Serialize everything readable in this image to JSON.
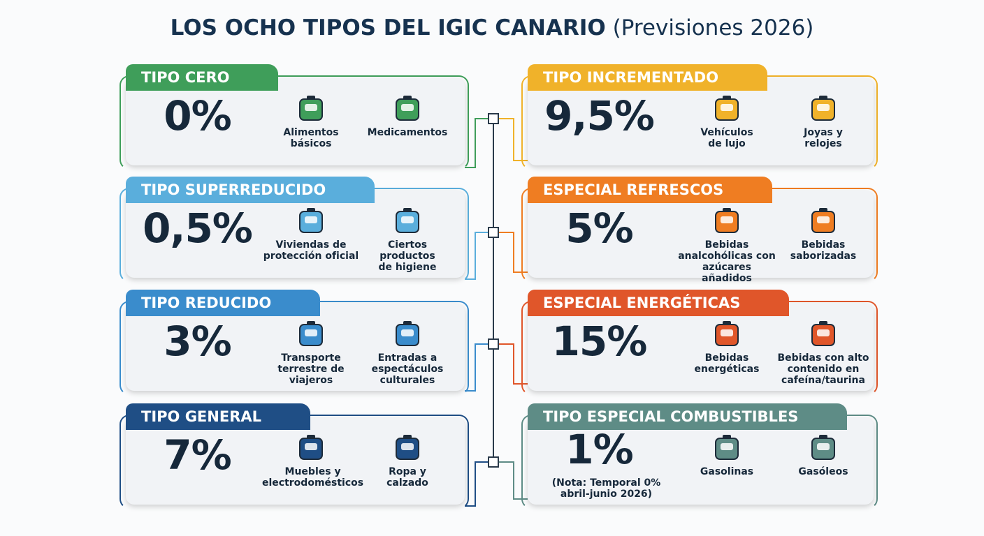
{
  "title": {
    "main": "LOS OCHO TIPOS DEL IGIC CANARIO",
    "sub": "(Previsiones 2026)"
  },
  "cards": [
    {
      "label": "TIPO CERO",
      "rate": "0%",
      "color": "#3f9e5a",
      "items": [
        "Alimentos\nbásicos",
        "Medicamentos"
      ]
    },
    {
      "label": "TIPO SUPERREDUCIDO",
      "rate": "0,5%",
      "color": "#5aaedc",
      "items": [
        "Viviendas de\nprotección oficial",
        "Ciertos productos\nde higiene"
      ]
    },
    {
      "label": "TIPO REDUCIDO",
      "rate": "3%",
      "color": "#3a8ccc",
      "items": [
        "Transporte\nterrestre de\nviajeros",
        "Entradas a\nespectáculos\nculturales"
      ]
    },
    {
      "label": "TIPO GENERAL",
      "rate": "7%",
      "color": "#1f4e85",
      "items": [
        "Muebles y\nelectrodomésticos",
        "Ropa y\ncalzado"
      ]
    },
    {
      "label": "TIPO INCREMENTADO",
      "rate": "9,5%",
      "color": "#f0b22a",
      "items": [
        "Vehículos\nde lujo",
        "Joyas y\nrelojes"
      ]
    },
    {
      "label": "ESPECIAL REFRESCOS",
      "rate": "5%",
      "color": "#ef7d22",
      "items": [
        "Bebidas\nanalcohólicas con\nazúcares añadidos",
        "Bebidas\nsaborizadas"
      ]
    },
    {
      "label": "ESPECIAL ENERGÉTICAS",
      "rate": "15%",
      "color": "#e0562a",
      "items": [
        "Bebidas\nenergéticas",
        "Bebidas con alto\ncontenido en\ncafeína/taurina"
      ]
    },
    {
      "label": "TIPO ESPECIAL COMBUSTIBLES",
      "rate": "1%",
      "color": "#5e8c86",
      "note": "(Nota: Temporal 0%\nabril-junio 2026)",
      "items": [
        "Gasolinas",
        "Gasóleos"
      ]
    }
  ]
}
